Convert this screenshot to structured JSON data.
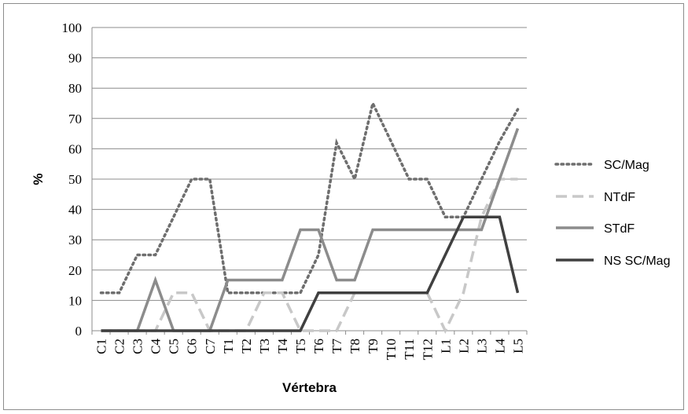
{
  "chart_data": {
    "type": "line",
    "title": "",
    "xlabel": "Vértebra",
    "ylabel": "%",
    "ylim": [
      0,
      100
    ],
    "yticks": [
      0,
      10,
      20,
      30,
      40,
      50,
      60,
      70,
      80,
      90,
      100
    ],
    "grid": "horizontal",
    "legend_position": "right",
    "categories": [
      "C1",
      "C2",
      "C3",
      "C4",
      "C5",
      "C6",
      "C7",
      "T1",
      "T2",
      "T3",
      "T4",
      "T5",
      "T6",
      "T7",
      "T8",
      "T9",
      "T10",
      "T11",
      "T12",
      "L1",
      "L2",
      "L3",
      "L4",
      "L5"
    ],
    "series": [
      {
        "name": "SC/Mag",
        "style": "dotted",
        "color": "#6e6e6e",
        "values": [
          12.5,
          12.5,
          25,
          25,
          37.5,
          50,
          50,
          12.5,
          12.5,
          12.5,
          12.5,
          12.5,
          25,
          62,
          50,
          75,
          62.5,
          50,
          50,
          37.5,
          37.5,
          50,
          62.5,
          73
        ]
      },
      {
        "name": "NTdF",
        "style": "dashed",
        "color": "#c8c8c8",
        "values": [
          0,
          0,
          0,
          0,
          12.5,
          12.5,
          0,
          0,
          0,
          12.5,
          12.5,
          0,
          0,
          0,
          12.5,
          12.5,
          12.5,
          12.5,
          12.5,
          0,
          12.5,
          37.5,
          50,
          50
        ]
      },
      {
        "name": "STdF",
        "style": "solid",
        "color": "#8c8c8c",
        "values": [
          0,
          0,
          0,
          16.7,
          0,
          0,
          0,
          16.7,
          16.7,
          16.7,
          16.7,
          33.3,
          33.3,
          16.7,
          16.7,
          33.3,
          33.3,
          33.3,
          33.3,
          33.3,
          33.3,
          33.3,
          50,
          66.7
        ]
      },
      {
        "name": "NS SC/Mag",
        "style": "solid",
        "color": "#404040",
        "values": [
          0,
          0,
          0,
          0,
          0,
          0,
          0,
          0,
          0,
          0,
          0,
          0,
          12.5,
          12.5,
          12.5,
          12.5,
          12.5,
          12.5,
          12.5,
          25,
          37.5,
          37.5,
          37.5,
          12.5
        ]
      }
    ]
  }
}
